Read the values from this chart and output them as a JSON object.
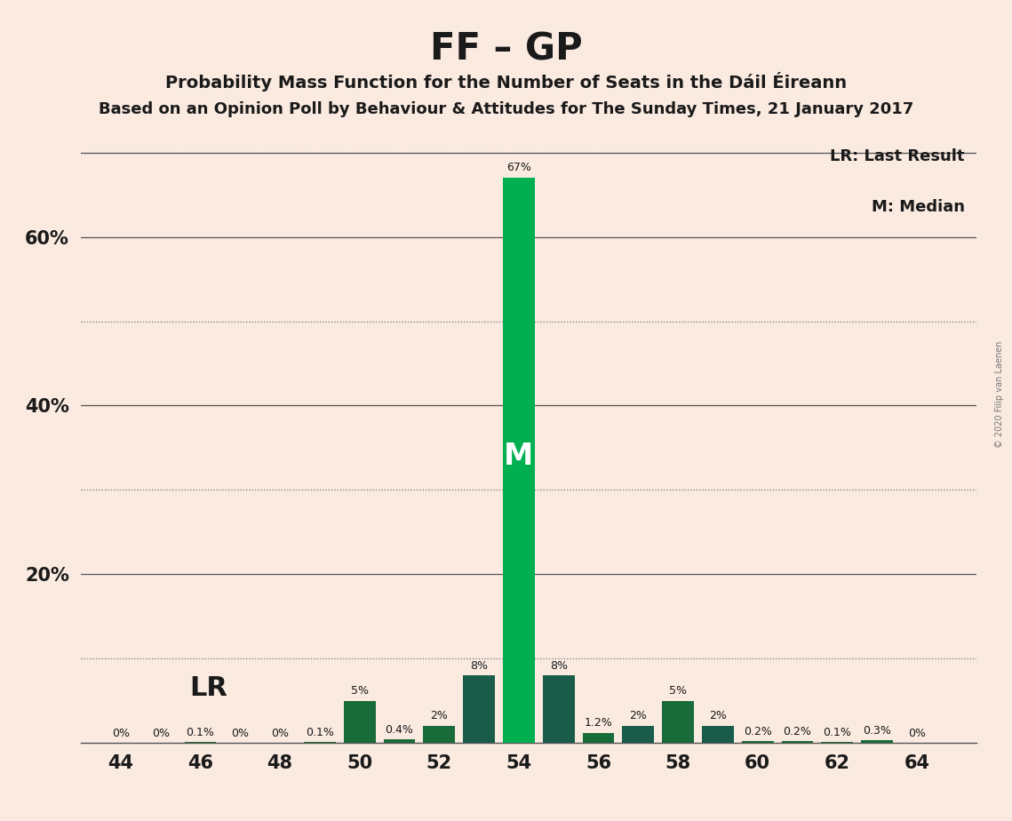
{
  "title": "FF – GP",
  "subtitle1": "Probability Mass Function for the Number of Seats in the Dáil Éireann",
  "subtitle2": "Based on an Opinion Poll by Behaviour & Attitudes for The Sunday Times, 21 January 2017",
  "copyright": "© 2020 Filip van Laenen",
  "background_color": "#faeae0",
  "seats": [
    44,
    45,
    46,
    47,
    48,
    49,
    50,
    51,
    52,
    53,
    54,
    55,
    56,
    57,
    58,
    59,
    60,
    61,
    62,
    63,
    64
  ],
  "probabilities": [
    0.0,
    0.0,
    0.1,
    0.0,
    0.0,
    0.1,
    5.0,
    0.4,
    2.0,
    8.0,
    67.0,
    8.0,
    1.2,
    2.0,
    5.0,
    2.0,
    0.2,
    0.2,
    0.1,
    0.3,
    0.0
  ],
  "labels": [
    "0%",
    "0%",
    "0.1%",
    "0%",
    "0%",
    "0.1%",
    "5%",
    "0.4%",
    "2%",
    "8%",
    "67%",
    "8%",
    "1.2%",
    "2%",
    "5%",
    "2%",
    "0.2%",
    "0.2%",
    "0.1%",
    "0.3%",
    "0%"
  ],
  "median_seat": 54,
  "last_result_seat": 44,
  "bar_color_light_green": "#00b050",
  "bar_color_dark_green": "#1a6b3a",
  "bar_color_dark_teal": "#1a5c4a",
  "xlim_left": 43,
  "xlim_right": 65.5,
  "ylim": [
    0,
    73
  ],
  "ytick_positions": [
    20,
    40,
    60
  ],
  "ytick_labels": [
    "20%",
    "40%",
    "60%"
  ],
  "dotted_lines": [
    10,
    30,
    50,
    70
  ],
  "solid_lines": [
    20,
    40,
    60
  ],
  "xticks": [
    44,
    46,
    48,
    50,
    52,
    54,
    56,
    58,
    60,
    62,
    64
  ],
  "legend_lr": "LR: Last Result",
  "legend_m": "M: Median",
  "lr_label": "LR",
  "m_label": "M",
  "dark_teal_seats": [
    53,
    55,
    57,
    59
  ]
}
